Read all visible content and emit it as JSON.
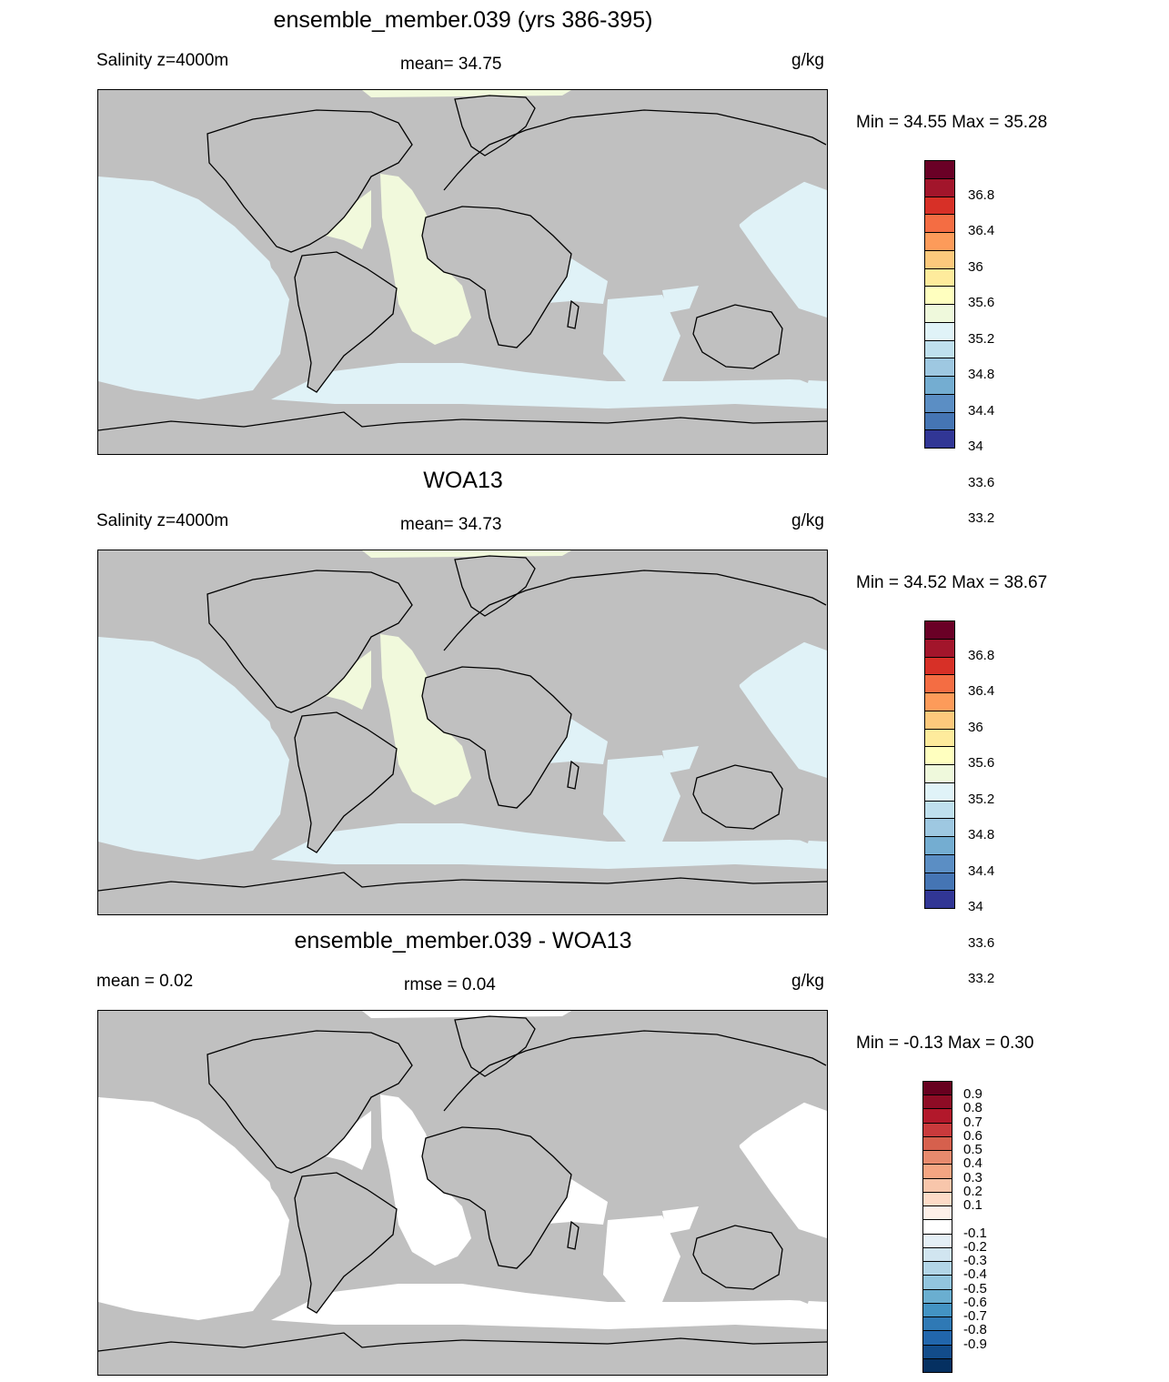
{
  "panels": [
    {
      "title": "ensemble_member.039 (yrs 386-395)",
      "left_label": "Salinity z=4000m",
      "mid_label": "mean=  34.75",
      "units": "g/kg",
      "minmax": "Min =  34.55 Max =  35.28",
      "ocean_color": "#e0f2f7",
      "highlight_color": "#f1f9dc",
      "land_color": "#c0c0c0",
      "colorbar": {
        "colors": [
          "#6a0026",
          "#a2152b",
          "#d73027",
          "#f46d43",
          "#fd9b5a",
          "#fdc97c",
          "#feeb9c",
          "#ffffbf",
          "#eff9dc",
          "#e0f3f8",
          "#bfe0ee",
          "#9ec8e1",
          "#74add1",
          "#5b8ec4",
          "#4575b4",
          "#313695"
        ],
        "labels": [
          "36.8",
          "36.4",
          "36",
          "35.6",
          "35.2",
          "34.8",
          "34.4",
          "34",
          "33.6",
          "33.2"
        ]
      }
    },
    {
      "title": "WOA13",
      "left_label": "Salinity z=4000m",
      "mid_label": "mean=  34.73",
      "units": "g/kg",
      "minmax": "Min =  34.52 Max =  38.67",
      "ocean_color": "#e0f2f7",
      "highlight_color": "#f1f9dc",
      "land_color": "#c0c0c0",
      "colorbar": {
        "colors": [
          "#6a0026",
          "#a2152b",
          "#d73027",
          "#f46d43",
          "#fd9b5a",
          "#fdc97c",
          "#feeb9c",
          "#ffffbf",
          "#eff9dc",
          "#e0f3f8",
          "#bfe0ee",
          "#9ec8e1",
          "#74add1",
          "#5b8ec4",
          "#4575b4",
          "#313695"
        ],
        "labels": [
          "36.8",
          "36.4",
          "36",
          "35.6",
          "35.2",
          "34.8",
          "34.4",
          "34",
          "33.6",
          "33.2"
        ]
      }
    },
    {
      "title": "ensemble_member.039 - WOA13",
      "left_label": "mean =   0.02",
      "mid_label": "rmse =   0.04",
      "units": "g/kg",
      "minmax": "Min =  -0.13 Max =   0.30",
      "ocean_color": "#ffffff",
      "highlight_color": "#ffffff",
      "land_color": "#c0c0c0",
      "colorbar": {
        "colors": [
          "#67001f",
          "#8e0c25",
          "#b2182b",
          "#c93a3c",
          "#d6604d",
          "#e78a6d",
          "#f4a582",
          "#f8c6ab",
          "#fddbc7",
          "#fdf0e8",
          "#ffffff",
          "#e4eff6",
          "#d1e5f0",
          "#b2d5e7",
          "#92c5de",
          "#6aaed0",
          "#4393c3",
          "#2f79b5",
          "#2166ac",
          "#124c8a",
          "#053061"
        ],
        "labels": [
          "0.9",
          "0.8",
          "0.7",
          "0.6",
          "0.5",
          "0.4",
          "0.3",
          "0.2",
          "0.1",
          "-0.1",
          "-0.2",
          "-0.3",
          "-0.4",
          "-0.5",
          "-0.6",
          "-0.7",
          "-0.8",
          "-0.9"
        ]
      }
    }
  ]
}
